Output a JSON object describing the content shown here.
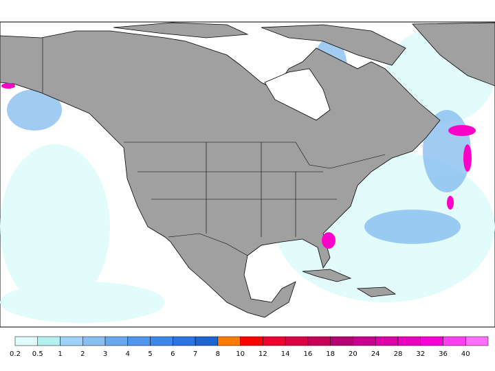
{
  "legend": {
    "levels": [
      {
        "value": 0.2,
        "color": "#e2fcfc"
      },
      {
        "value": 0.5,
        "color": "#b4f0f0"
      },
      {
        "value": 1,
        "color": "#a0d2f8"
      },
      {
        "value": 2,
        "color": "#88bef0"
      },
      {
        "value": 3,
        "color": "#6aa8ee"
      },
      {
        "value": 4,
        "color": "#5096ee"
      },
      {
        "value": 5,
        "color": "#3c86ec"
      },
      {
        "value": 6,
        "color": "#2a74e4"
      },
      {
        "value": 7,
        "color": "#1e64d2"
      },
      {
        "value": 8,
        "color": "#ff7c00"
      },
      {
        "value": 10,
        "color": "#ff0000"
      },
      {
        "value": 12,
        "color": "#ee0030"
      },
      {
        "value": 14,
        "color": "#dc0044"
      },
      {
        "value": 16,
        "color": "#c80058"
      },
      {
        "value": 18,
        "color": "#b40070"
      },
      {
        "value": 20,
        "color": "#c80090"
      },
      {
        "value": 24,
        "color": "#dc00a8"
      },
      {
        "value": 28,
        "color": "#ec00c0"
      },
      {
        "value": 32,
        "color": "#f800d8"
      },
      {
        "value": 36,
        "color": "#ff40f0"
      },
      {
        "value": 40,
        "color": "#ff70ff"
      }
    ]
  }
}
